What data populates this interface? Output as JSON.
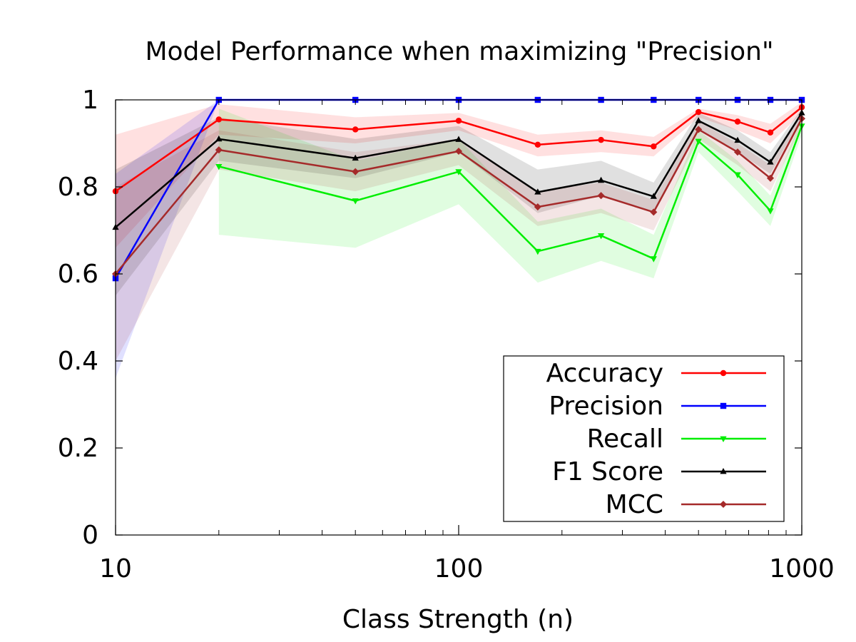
{
  "chart_data": {
    "type": "line",
    "title": "Model Performance when maximizing \"Precision\"",
    "xlabel": "Class Strength (n)",
    "ylabel": "",
    "x_scale": "log",
    "xlim": [
      10,
      1000
    ],
    "ylim": [
      0,
      1
    ],
    "x_ticks": [
      10,
      100,
      1000
    ],
    "x_tick_labels": [
      "10",
      "100",
      "1000"
    ],
    "y_ticks": [
      0,
      0.2,
      0.4,
      0.6,
      0.8,
      1
    ],
    "y_tick_labels": [
      "0",
      "0.2",
      "0.4",
      "0.6",
      "0.8",
      "1"
    ],
    "grid": false,
    "legend_position": "bottom-right",
    "x": [
      10,
      20,
      50,
      100,
      170,
      260,
      370,
      500,
      650,
      810,
      1000
    ],
    "series": [
      {
        "name": "Accuracy",
        "color": "#ff0000",
        "marker": "circle",
        "values": [
          0.79,
          0.955,
          0.932,
          0.952,
          0.897,
          0.908,
          0.893,
          0.972,
          0.95,
          0.925,
          0.983
        ],
        "lower": [
          0.66,
          0.92,
          0.9,
          0.93,
          0.87,
          0.88,
          0.87,
          0.96,
          0.93,
          0.9,
          0.97
        ],
        "upper": [
          0.92,
          0.99,
          0.96,
          0.97,
          0.92,
          0.93,
          0.915,
          0.98,
          0.965,
          0.945,
          0.995
        ]
      },
      {
        "name": "Precision",
        "color": "#0000ff",
        "marker": "square",
        "values": [
          0.59,
          1.0,
          1.0,
          1.0,
          1.0,
          1.0,
          1.0,
          1.0,
          1.0,
          1.0,
          1.0
        ],
        "lower": [
          0.36,
          1.0,
          1.0,
          1.0,
          1.0,
          1.0,
          1.0,
          1.0,
          1.0,
          1.0,
          1.0
        ],
        "upper": [
          0.83,
          1.0,
          1.0,
          1.0,
          1.0,
          1.0,
          1.0,
          1.0,
          1.0,
          1.0,
          1.0
        ]
      },
      {
        "name": "Recall",
        "color": "#00ee00",
        "marker": "triangle-down",
        "values": [
          null,
          0.847,
          0.768,
          0.835,
          0.652,
          0.688,
          0.635,
          0.905,
          0.828,
          0.745,
          0.94
        ],
        "lower": [
          null,
          0.69,
          0.66,
          0.76,
          0.58,
          0.63,
          0.59,
          0.88,
          0.79,
          0.71,
          0.92
        ],
        "upper": [
          null,
          0.98,
          0.86,
          0.91,
          0.72,
          0.75,
          0.69,
          0.93,
          0.86,
          0.78,
          0.96
        ]
      },
      {
        "name": "F1 Score",
        "color": "#000000",
        "marker": "triangle-up",
        "values": [
          0.707,
          0.91,
          0.866,
          0.909,
          0.788,
          0.815,
          0.778,
          0.952,
          0.907,
          0.857,
          0.97
        ],
        "lower": [
          0.55,
          0.86,
          0.82,
          0.88,
          0.74,
          0.78,
          0.74,
          0.93,
          0.88,
          0.83,
          0.96
        ],
        "upper": [
          0.84,
          0.96,
          0.91,
          0.94,
          0.84,
          0.86,
          0.81,
          0.97,
          0.93,
          0.88,
          0.98
        ]
      },
      {
        "name": "MCC",
        "color": "#a52a2a",
        "marker": "diamond",
        "values": [
          0.6,
          0.885,
          0.835,
          0.882,
          0.754,
          0.78,
          0.742,
          0.932,
          0.88,
          0.82,
          0.957
        ],
        "lower": [
          0.4,
          0.84,
          0.79,
          0.85,
          0.71,
          0.74,
          0.7,
          0.91,
          0.85,
          0.79,
          0.94
        ],
        "upper": [
          0.8,
          0.93,
          0.88,
          0.91,
          0.79,
          0.81,
          0.77,
          0.95,
          0.9,
          0.85,
          0.97
        ]
      }
    ]
  }
}
